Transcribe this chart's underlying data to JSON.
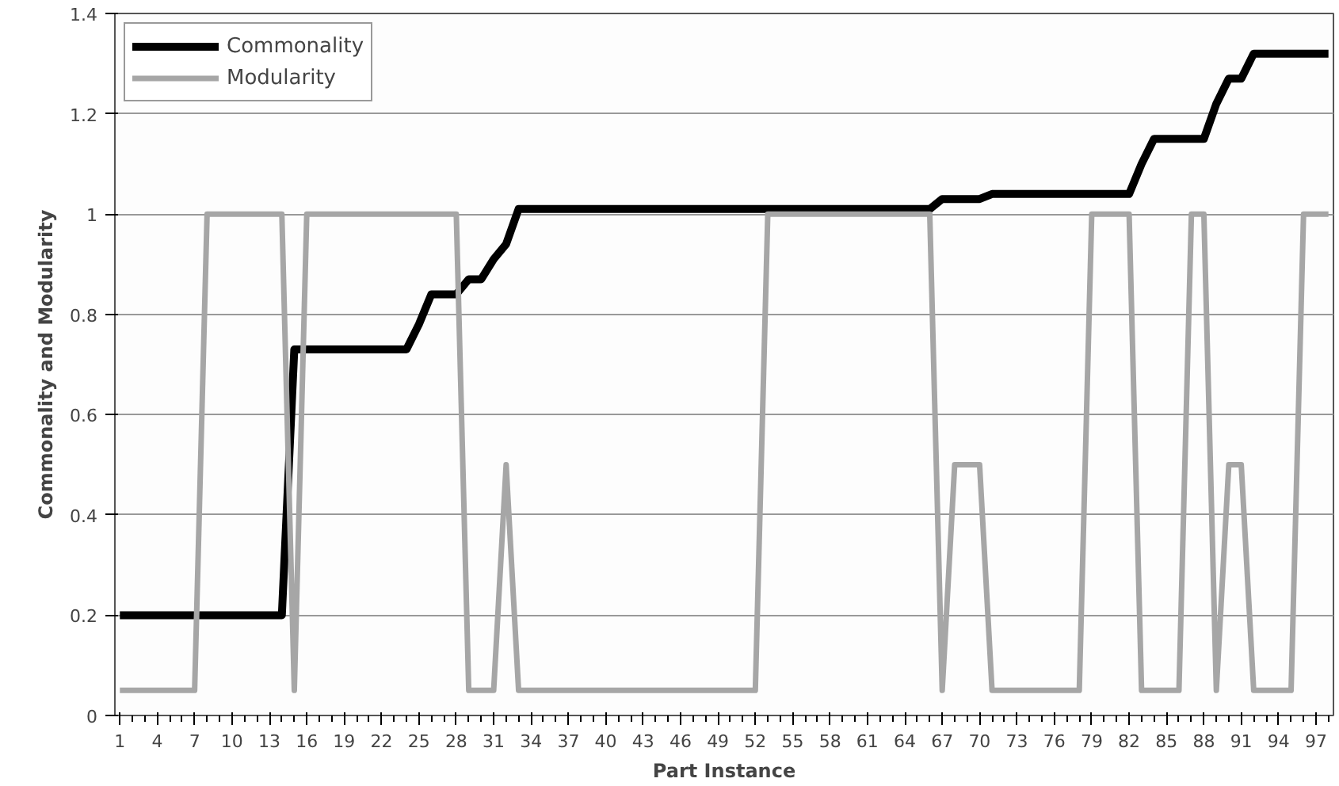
{
  "chart_data": {
    "type": "line",
    "xlabel": "Part Instance",
    "ylabel": "Commonality and Modularity",
    "x": [
      1,
      2,
      3,
      4,
      5,
      6,
      7,
      8,
      9,
      10,
      11,
      12,
      13,
      14,
      15,
      16,
      17,
      18,
      19,
      20,
      21,
      22,
      23,
      24,
      25,
      26,
      27,
      28,
      29,
      30,
      31,
      32,
      33,
      34,
      35,
      36,
      37,
      38,
      39,
      40,
      41,
      42,
      43,
      44,
      45,
      46,
      47,
      48,
      49,
      50,
      51,
      52,
      53,
      54,
      55,
      56,
      57,
      58,
      59,
      60,
      61,
      62,
      63,
      64,
      65,
      66,
      67,
      68,
      69,
      70,
      71,
      72,
      73,
      74,
      75,
      76,
      77,
      78,
      79,
      80,
      81,
      82,
      83,
      84,
      85,
      86,
      87,
      88,
      89,
      90,
      91,
      92,
      93,
      94,
      95,
      96,
      97,
      98
    ],
    "series": [
      {
        "name": "Commonality",
        "color": "#000000",
        "values": [
          0.2,
          0.2,
          0.2,
          0.2,
          0.2,
          0.2,
          0.2,
          0.2,
          0.2,
          0.2,
          0.2,
          0.2,
          0.2,
          0.2,
          0.73,
          0.73,
          0.73,
          0.73,
          0.73,
          0.73,
          0.73,
          0.73,
          0.73,
          0.73,
          0.78,
          0.84,
          0.84,
          0.84,
          0.87,
          0.87,
          0.91,
          0.94,
          1.01,
          1.01,
          1.01,
          1.01,
          1.01,
          1.01,
          1.01,
          1.01,
          1.01,
          1.01,
          1.01,
          1.01,
          1.01,
          1.01,
          1.01,
          1.01,
          1.01,
          1.01,
          1.01,
          1.01,
          1.01,
          1.01,
          1.01,
          1.01,
          1.01,
          1.01,
          1.01,
          1.01,
          1.01,
          1.01,
          1.01,
          1.01,
          1.01,
          1.01,
          1.03,
          1.03,
          1.03,
          1.03,
          1.04,
          1.04,
          1.04,
          1.04,
          1.04,
          1.04,
          1.04,
          1.04,
          1.04,
          1.04,
          1.04,
          1.04,
          1.1,
          1.15,
          1.15,
          1.15,
          1.15,
          1.15,
          1.22,
          1.27,
          1.27,
          1.32,
          1.32,
          1.32,
          1.32,
          1.32,
          1.32,
          1.32
        ]
      },
      {
        "name": "Modularity",
        "color": "#a6a6a6",
        "values": [
          0.05,
          0.05,
          0.05,
          0.05,
          0.05,
          0.05,
          0.05,
          1,
          1,
          1,
          1,
          1,
          1,
          1,
          0.05,
          1,
          1,
          1,
          1,
          1,
          1,
          1,
          1,
          1,
          1,
          1,
          1,
          1,
          0.05,
          0.05,
          0.05,
          0.5,
          0.05,
          0.05,
          0.05,
          0.05,
          0.05,
          0.05,
          0.05,
          0.05,
          0.05,
          0.05,
          0.05,
          0.05,
          0.05,
          0.05,
          0.05,
          0.05,
          0.05,
          0.05,
          0.05,
          0.05,
          1,
          1,
          1,
          1,
          1,
          1,
          1,
          1,
          1,
          1,
          1,
          1,
          1,
          1,
          0.05,
          0.5,
          0.5,
          0.5,
          0.05,
          0.05,
          0.05,
          0.05,
          0.05,
          0.05,
          0.05,
          0.05,
          1,
          1,
          1,
          1,
          0.05,
          0.05,
          0.05,
          0.05,
          1,
          1,
          0.05,
          0.5,
          0.5,
          0.05,
          0.05,
          0.05,
          0.05,
          1,
          1,
          1
        ]
      }
    ],
    "xlim": [
      0.6,
      98.4
    ],
    "xticks": [
      1,
      4,
      7,
      10,
      13,
      16,
      19,
      22,
      25,
      28,
      31,
      34,
      37,
      40,
      43,
      46,
      49,
      52,
      55,
      58,
      61,
      64,
      67,
      70,
      73,
      76,
      79,
      82,
      85,
      88,
      91,
      94,
      97
    ],
    "ylim": [
      0,
      1.4
    ],
    "yticks": [
      0,
      0.2,
      0.4,
      0.6,
      0.8,
      1,
      1.2,
      1.4
    ],
    "grid": "y",
    "legend": "top left",
    "marker": "none",
    "line_style": "solid"
  }
}
